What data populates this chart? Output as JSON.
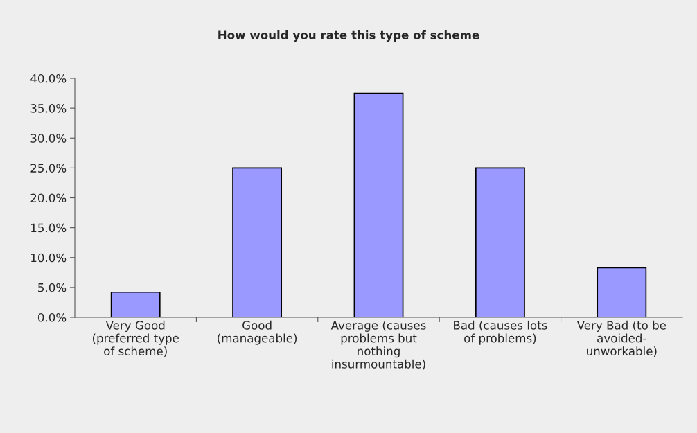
{
  "chart_data": {
    "type": "bar",
    "title": "How would you rate this type of scheme",
    "categories": [
      "Very Good\n(preferred type\nof scheme)",
      "Good\n(manageable)",
      "Average (causes\nproblems but\nnothing\ninsurmountable)",
      "Bad (causes lots\nof problems)",
      "Very Bad (to be\navoided-\nunworkable)"
    ],
    "values": [
      4.2,
      25.0,
      37.5,
      25.0,
      8.3
    ],
    "color": "#9999ff",
    "ylim": [
      0,
      40
    ],
    "yticks": [
      {
        "value": 0,
        "label": "0.0%"
      },
      {
        "value": 5,
        "label": "5.0%"
      },
      {
        "value": 10,
        "label": "10.0%"
      },
      {
        "value": 15,
        "label": "15.0%"
      },
      {
        "value": 20,
        "label": "20.0%"
      },
      {
        "value": 25,
        "label": "25.0%"
      },
      {
        "value": 30,
        "label": "30.0%"
      },
      {
        "value": 35,
        "label": "35.0%"
      },
      {
        "value": 40,
        "label": "40.0%"
      }
    ],
    "grid": false,
    "legend": false
  }
}
